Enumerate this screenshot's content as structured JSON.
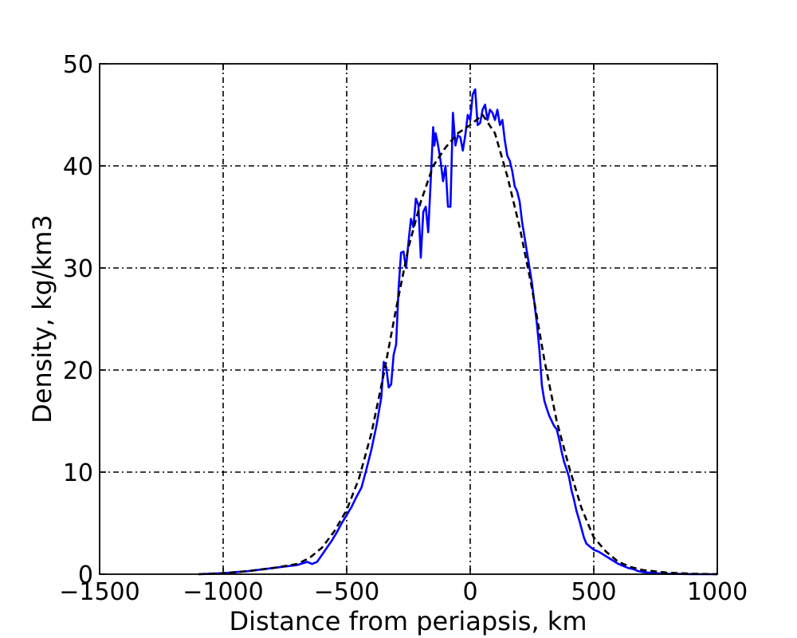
{
  "chart_data": {
    "type": "line",
    "title": "",
    "xlabel": "Distance from periapsis, km",
    "ylabel": "Density, kg/km3",
    "xlim": [
      -1500,
      1000
    ],
    "ylim": [
      0,
      50
    ],
    "xticks": [
      -1500,
      -1000,
      -500,
      0,
      500,
      1000
    ],
    "yticks": [
      0,
      10,
      20,
      30,
      40,
      50
    ],
    "xtick_labels": [
      "−1500",
      "−1000",
      "−500",
      "0",
      "500",
      "1000"
    ],
    "ytick_labels": [
      "0",
      "10",
      "20",
      "30",
      "40",
      "50"
    ],
    "grid": true,
    "series": [
      {
        "style": "solid",
        "color": "#0000ff",
        "x": [
          -1100,
          -1000,
          -900,
          -800,
          -700,
          -660,
          -640,
          -620,
          -600,
          -580,
          -560,
          -540,
          -520,
          -500,
          -480,
          -460,
          -440,
          -420,
          -400,
          -380,
          -360,
          -350,
          -340,
          -330,
          -320,
          -310,
          -300,
          -290,
          -280,
          -270,
          -260,
          -250,
          -240,
          -230,
          -220,
          -210,
          -200,
          -190,
          -180,
          -170,
          -160,
          -150,
          -145,
          -140,
          -130,
          -120,
          -110,
          -100,
          -90,
          -80,
          -70,
          -60,
          -50,
          -40,
          -30,
          -20,
          -10,
          0,
          10,
          20,
          30,
          40,
          50,
          60,
          70,
          80,
          90,
          100,
          110,
          120,
          130,
          140,
          150,
          160,
          170,
          180,
          190,
          200,
          210,
          220,
          230,
          240,
          250,
          260,
          270,
          280,
          290,
          300,
          310,
          320,
          330,
          340,
          350,
          360,
          370,
          380,
          390,
          400,
          410,
          420,
          430,
          440,
          450,
          460,
          470,
          480,
          490,
          500,
          520,
          540,
          560,
          580,
          600,
          620,
          640,
          660,
          680,
          700,
          750,
          800,
          850,
          900,
          950,
          1000
        ],
        "y": [
          0,
          0.1,
          0.3,
          0.6,
          0.9,
          1.2,
          1.0,
          1.2,
          1.9,
          2.6,
          3.3,
          4.1,
          5.0,
          5.8,
          6.6,
          7.6,
          8.5,
          10.3,
          12.2,
          14.5,
          17.3,
          20.8,
          20.3,
          18.3,
          18.6,
          21.5,
          22.5,
          28.0,
          31.5,
          31.6,
          30.0,
          32.5,
          34.8,
          34.0,
          36.8,
          36.2,
          31.0,
          35.5,
          36.0,
          33.5,
          38.5,
          43.8,
          42.0,
          43.2,
          42.0,
          40.5,
          38.5,
          40.0,
          36.0,
          36.0,
          45.2,
          42.0,
          43.0,
          42.8,
          41.5,
          43.0,
          45.0,
          44.5,
          47.0,
          47.5,
          44.0,
          44.2,
          45.5,
          46.0,
          44.5,
          45.5,
          45.2,
          44.5,
          45.5,
          44.0,
          44.5,
          42.5,
          41.0,
          40.5,
          39.5,
          38.0,
          37.5,
          36.5,
          34.5,
          33.0,
          31.5,
          30.0,
          28.5,
          26.5,
          24.5,
          22.0,
          18.5,
          17.0,
          16.2,
          15.5,
          15.0,
          14.5,
          14.2,
          13.2,
          12.0,
          11.0,
          10.3,
          9.5,
          8.2,
          7.3,
          6.2,
          5.4,
          4.5,
          3.6,
          3.0,
          2.8,
          2.6,
          2.4,
          2.2,
          1.9,
          1.6,
          1.3,
          1.0,
          0.8,
          0.6,
          0.5,
          0.3,
          0.2,
          0.1,
          0.05,
          0.02,
          0.01,
          0,
          0
        ]
      },
      {
        "style": "dashed",
        "color": "#000000",
        "x": [
          -1100,
          -1000,
          -900,
          -800,
          -700,
          -650,
          -600,
          -550,
          -500,
          -450,
          -400,
          -350,
          -300,
          -250,
          -200,
          -150,
          -100,
          -50,
          0,
          50,
          100,
          150,
          200,
          250,
          300,
          350,
          400,
          450,
          500,
          550,
          600,
          650,
          700,
          800,
          900,
          1000
        ],
        "y": [
          0,
          0.1,
          0.3,
          0.6,
          1.0,
          1.6,
          2.6,
          4.2,
          6.3,
          9.4,
          13.8,
          19.6,
          26.0,
          32.0,
          36.5,
          40.0,
          41.8,
          43.2,
          44.0,
          45.0,
          43.2,
          39.0,
          34.0,
          28.0,
          21.0,
          15.0,
          10.5,
          6.5,
          3.6,
          2.2,
          1.2,
          0.7,
          0.4,
          0.15,
          0.05,
          0
        ]
      }
    ]
  }
}
